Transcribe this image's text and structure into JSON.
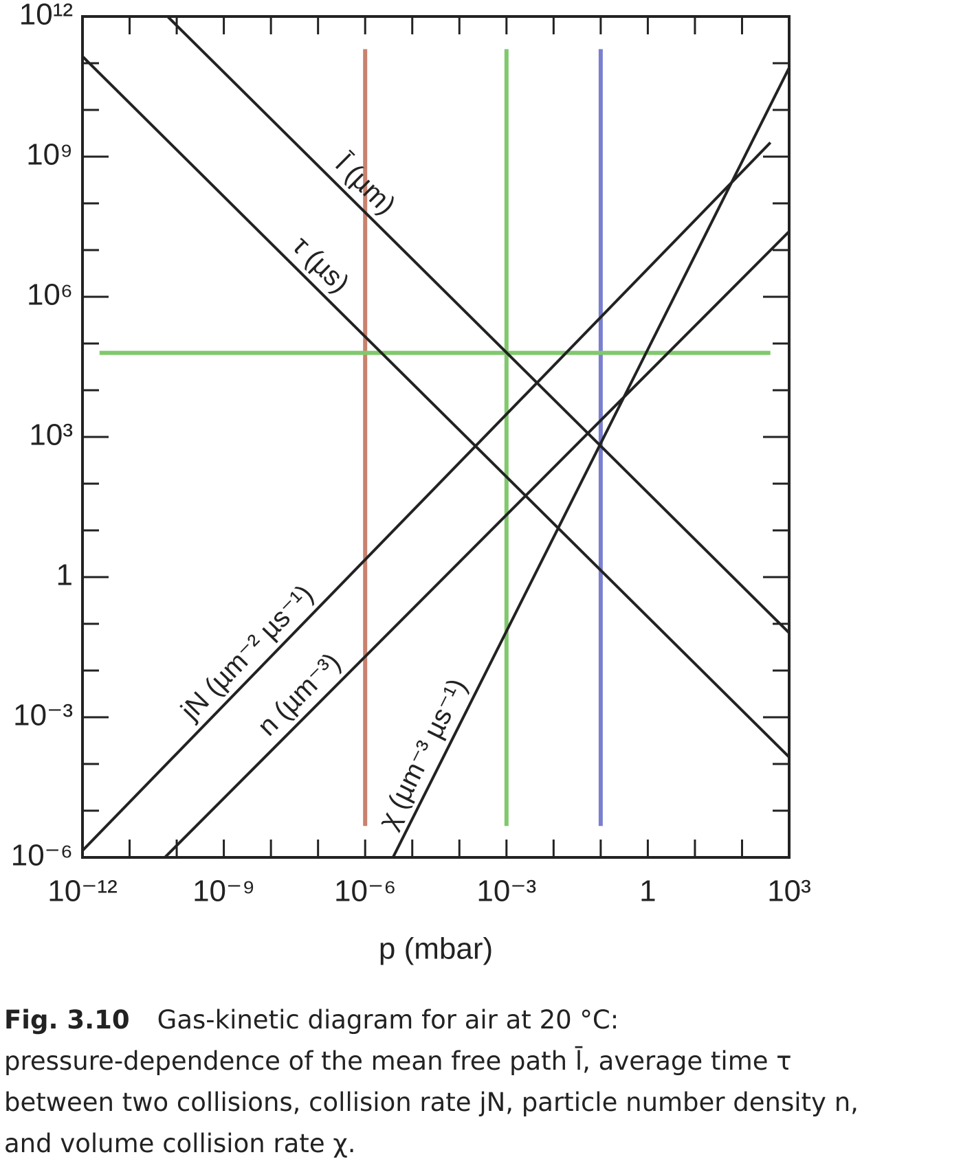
{
  "chart_data": {
    "type": "line",
    "xlabel": "p (mbar)",
    "xscale": "log",
    "yscale": "log",
    "xlim": [
      1e-12,
      1000
    ],
    "ylim": [
      1e-06,
      1000000000000.0
    ],
    "xticks": [
      {
        "value": 1e-12,
        "label": "10⁻¹²"
      },
      {
        "value": 1e-09,
        "label": "10⁻⁹"
      },
      {
        "value": 1e-06,
        "label": "10⁻⁶"
      },
      {
        "value": 0.001,
        "label": "10⁻³"
      },
      1,
      {
        "value": 1000,
        "label": "10³"
      }
    ],
    "yticks": [
      {
        "value": 1000000000000.0,
        "label": "10¹²"
      },
      {
        "value": 1000000000.0,
        "label": "10⁹"
      },
      {
        "value": 1000000.0,
        "label": "10⁶"
      },
      {
        "value": 1000,
        "label": "10³"
      },
      1,
      {
        "value": 0.001,
        "label": "10⁻³"
      },
      {
        "value": 1e-06,
        "label": "10⁻⁶"
      }
    ],
    "xminor_ticks": [
      1e-11,
      1e-10,
      1e-08,
      1e-07,
      1e-05,
      0.0001,
      0.01,
      0.1,
      10,
      100
    ],
    "yminor_ticks": [
      100000000000.0,
      10000000000.0,
      100000000.0,
      10000000.0,
      100000.0,
      10000.0,
      100,
      10,
      0.1,
      0.01,
      0.0001,
      1e-05
    ],
    "series": [
      {
        "name": "l̄ (µm)",
        "color": "#222222",
        "x": [
          6.4e-11,
          1000
        ],
        "values": [
          1000000000000.0,
          0.064
        ]
      },
      {
        "name": "τ (µs)",
        "color": "#222222",
        "x": [
          1e-12,
          1000
        ],
        "values": [
          140000000000.0,
          0.00014
        ]
      },
      {
        "name": "jN (µm⁻² µs⁻¹)",
        "color": "#222222",
        "x": [
          1e-12,
          400
        ],
        "values": [
          1.4e-06,
          2000000000.0
        ]
      },
      {
        "name": "n (µm⁻³)",
        "color": "#222222",
        "x": [
          5.6e-11,
          1000
        ],
        "values": [
          1e-06,
          25000000.0
        ]
      },
      {
        "name": "χ (µm⁻³ µs⁻¹)",
        "color": "#222222",
        "x": [
          3.9e-06,
          1000
        ],
        "values": [
          1e-06,
          80000000000.0
        ]
      }
    ],
    "guides": [
      {
        "axis": "x",
        "value": 1e-06,
        "span": [
          4.7e-06,
          200000000000.0
        ],
        "color": "#c9826f"
      },
      {
        "axis": "x",
        "value": 0.001,
        "span": [
          4.7e-06,
          200000000000.0
        ],
        "color": "#80c86c"
      },
      {
        "axis": "x",
        "value": 0.1,
        "span": [
          4.7e-06,
          200000000000.0
        ],
        "color": "#7a7fd0"
      },
      {
        "axis": "y",
        "value": 63000,
        "span": [
          2.3e-12,
          400
        ],
        "color": "#80c86c"
      }
    ]
  },
  "caption": {
    "label": "Fig. 3.10",
    "lines": [
      "Gas-kinetic diagram for air at 20 °C:",
      "pressure-dependence of the mean free path l̄, average time τ",
      "between two collisions, collision rate jN, particle number density n,",
      "and volume collision rate χ."
    ]
  }
}
